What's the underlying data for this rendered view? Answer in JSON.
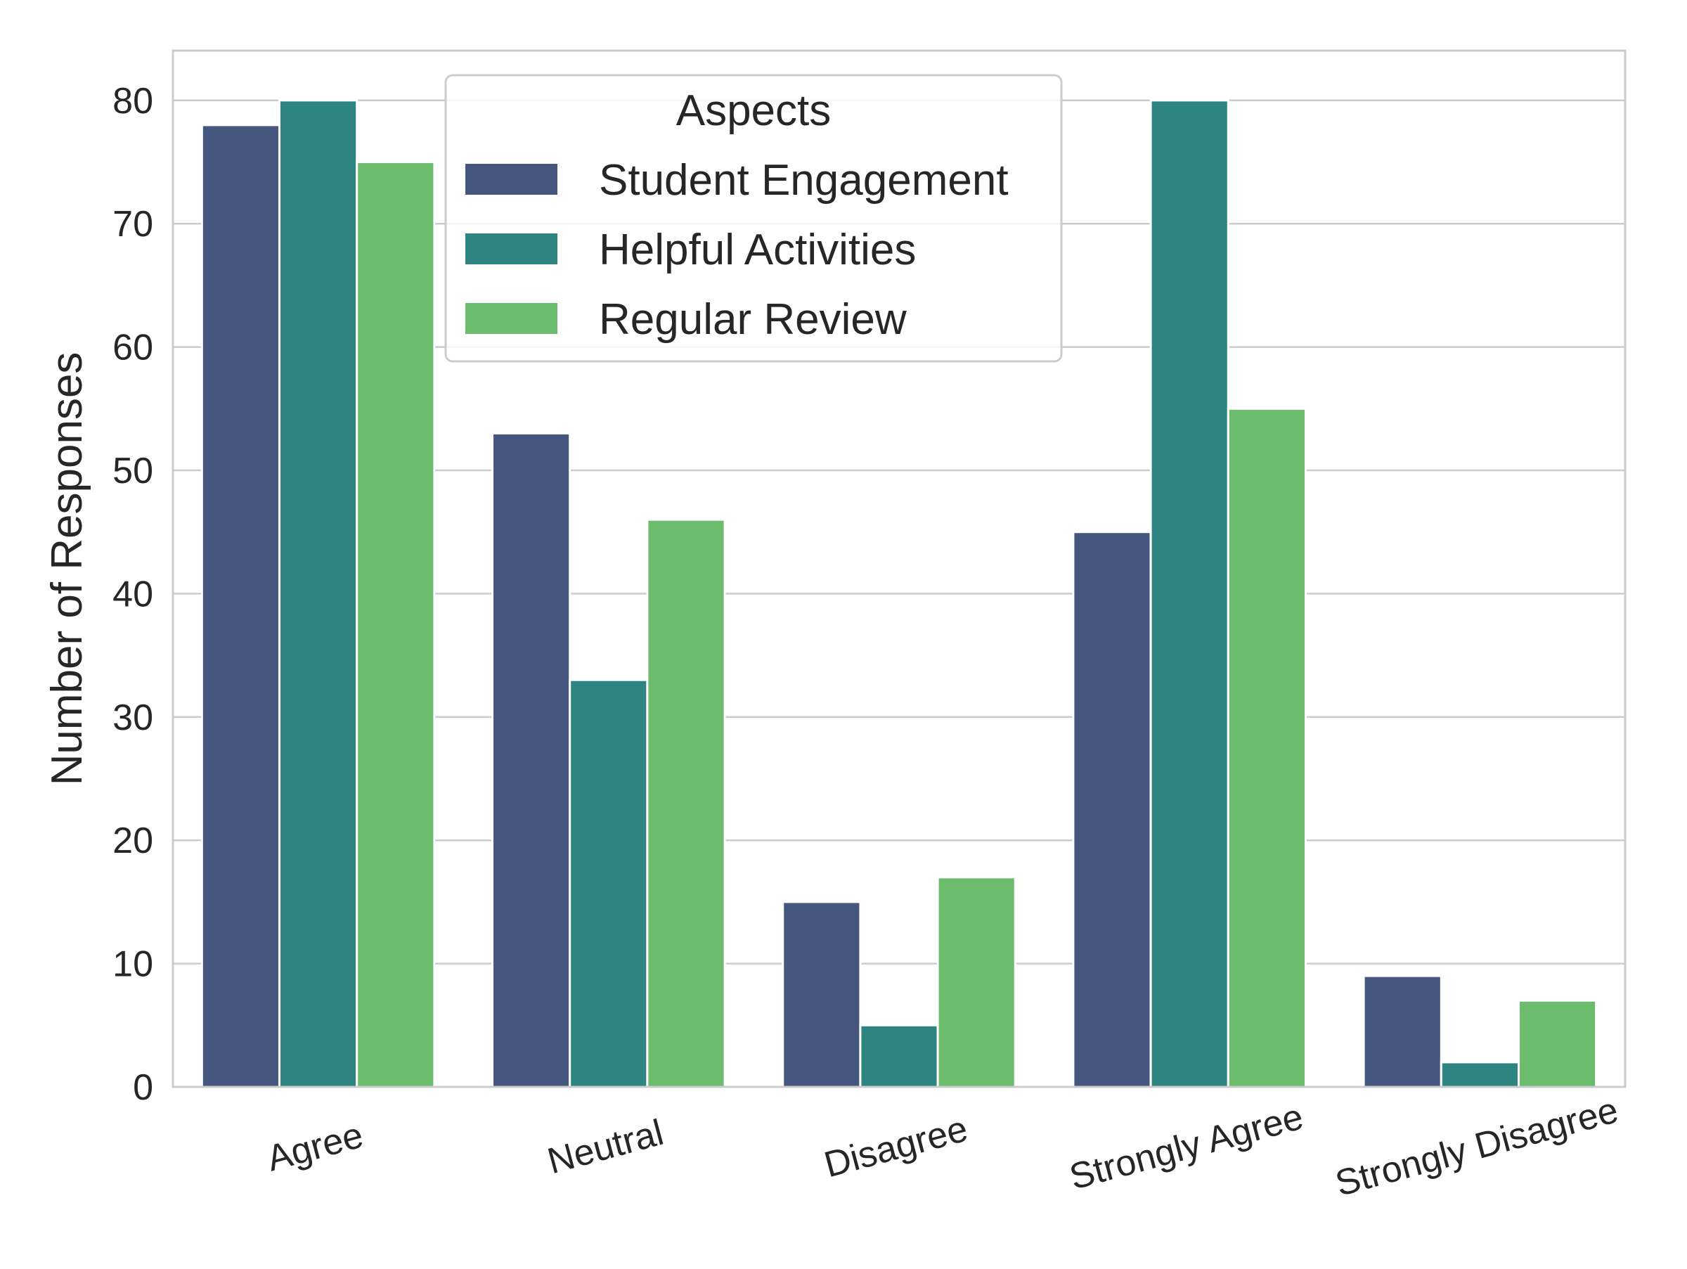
{
  "chart_data": {
    "type": "bar",
    "categories": [
      "Agree",
      "Neutral",
      "Disagree",
      "Strongly Agree",
      "Strongly Disagree"
    ],
    "series": [
      {
        "name": "Student Engagement",
        "color": "#46577f",
        "values": [
          78,
          53,
          15,
          45,
          9
        ]
      },
      {
        "name": "Helpful Activities",
        "color": "#2e8480",
        "values": [
          80,
          33,
          5,
          80,
          2
        ]
      },
      {
        "name": "Regular Review",
        "color": "#6bbd6d",
        "values": [
          75,
          46,
          17,
          55,
          7
        ]
      }
    ],
    "legend_title": "Aspects",
    "legend_position": "top-center",
    "xlabel": "",
    "ylabel": "Number of Responses",
    "yticks": [
      0,
      10,
      20,
      30,
      40,
      50,
      60,
      70,
      80
    ],
    "ylim": [
      0,
      84
    ],
    "grid": "horizontal",
    "xtick_rotation": 15
  }
}
